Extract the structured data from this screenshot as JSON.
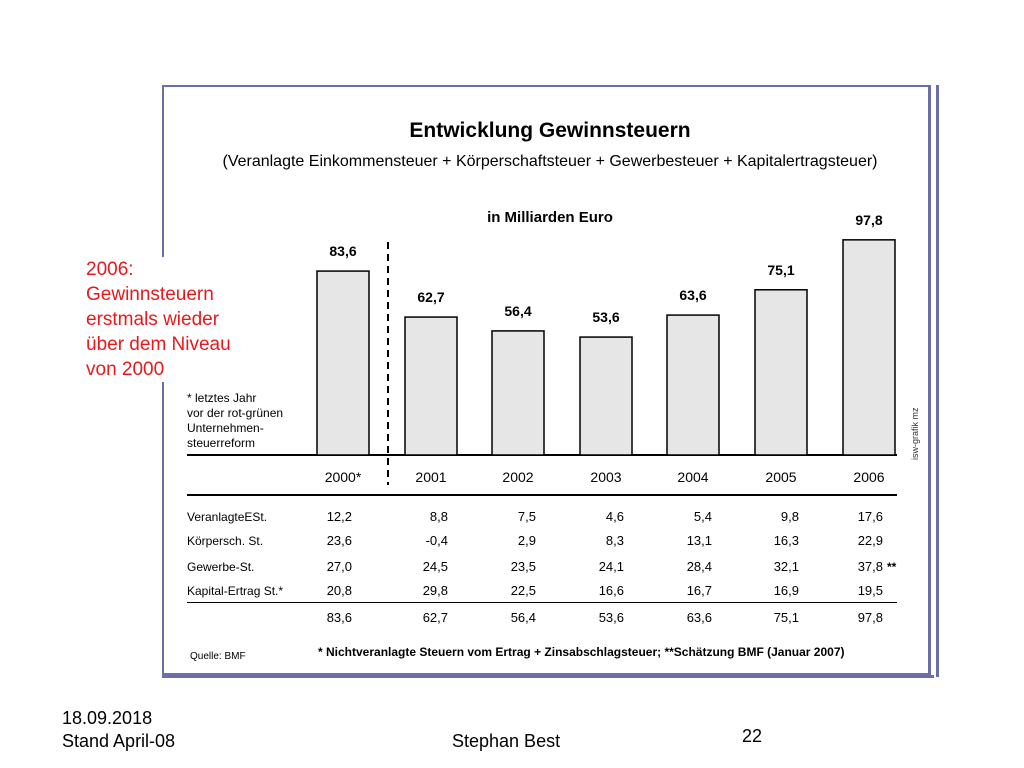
{
  "chart_data": {
    "type": "bar",
    "title": "Entwicklung Gewinnsteuern",
    "subtitle": "(Veranlagte Einkommensteuer + Körperschaftsteuer + Gewerbesteuer + Kapitalertragsteuer)",
    "unit_label": "in Milliarden Euro",
    "categories": [
      "2000*",
      "2001",
      "2002",
      "2003",
      "2004",
      "2005",
      "2006"
    ],
    "values": [
      83.6,
      62.7,
      56.4,
      53.6,
      63.6,
      75.1,
      97.8
    ],
    "value_labels": [
      "83,6",
      "62,7",
      "56,4",
      "53,6",
      "63,6",
      "75,1",
      "97,8"
    ],
    "ylim": [
      0,
      100
    ],
    "bar_color": "#e6e6e6",
    "footnote": [
      "* letztes Jahr",
      "vor der rot-grünen",
      "Unternehmen-",
      "steuerreform"
    ],
    "credit": "isw-grafik mz"
  },
  "table": {
    "rows": [
      {
        "label": "VeranlagteESt.",
        "values": [
          "12,2",
          "8,8",
          "7,5",
          "4,6",
          "5,4",
          "9,8",
          "17,6"
        ]
      },
      {
        "label": "Körpersch. St.",
        "values": [
          "23,6",
          "-0,4",
          "2,9",
          "8,3",
          "13,1",
          "16,3",
          "22,9"
        ]
      },
      {
        "label": "Gewerbe-St.",
        "values": [
          "27,0",
          "24,5",
          "23,5",
          "24,1",
          "28,4",
          "32,1",
          "37,8"
        ]
      },
      {
        "label": "Kapital-Ertrag St.*",
        "values": [
          "20,8",
          "29,8",
          "22,5",
          "16,6",
          "16,7",
          "16,9",
          "19,5"
        ]
      }
    ],
    "totals": [
      "83,6",
      "62,7",
      "56,4",
      "53,6",
      "63,6",
      "75,1",
      "97,8"
    ],
    "estimate_mark": "**",
    "source": "Quelle: BMF",
    "note": "* Nichtveranlagte Steuern vom Ertrag + Zinsabschlagsteuer; **Schätzung BMF (Januar 2007)"
  },
  "annotation": {
    "lines": [
      "2006:",
      "Gewinnsteuern",
      "erstmals wieder",
      "über dem Niveau",
      "von 2000"
    ],
    "color": "#e8191c"
  },
  "slide": {
    "date": "18.09.2018",
    "stand": "Stand April-08",
    "author": "Stephan Best",
    "page": "22"
  }
}
